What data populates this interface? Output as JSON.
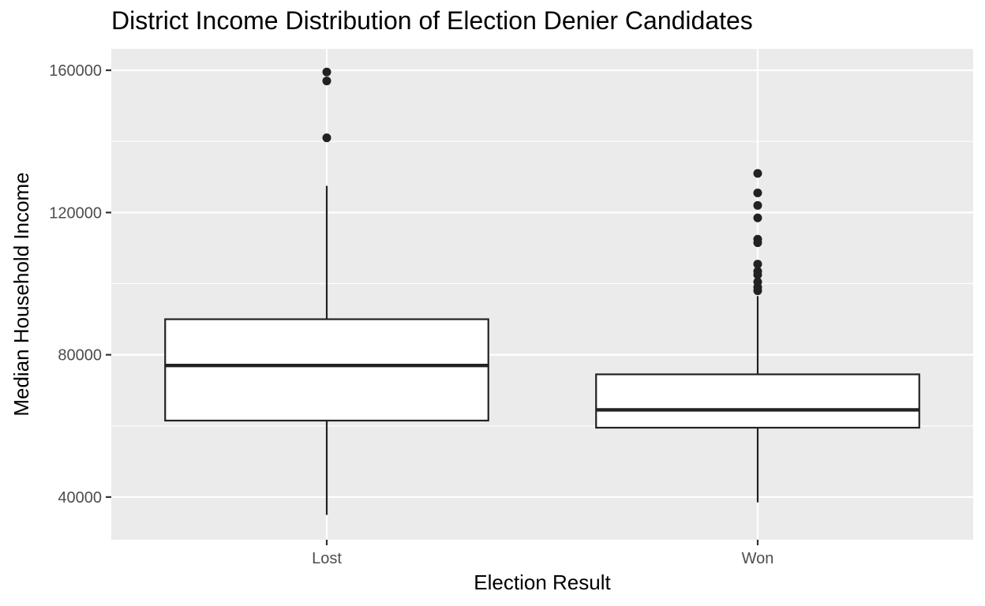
{
  "chart_data": {
    "type": "box",
    "title": "District Income Distribution of Election Denier Candidates",
    "xlabel": "Election Result",
    "ylabel": "Median Household Income",
    "categories": [
      "Lost",
      "Won"
    ],
    "y_ticks": [
      40000,
      80000,
      120000,
      160000
    ],
    "y_tick_labels": [
      "40000",
      "80000",
      "120000",
      "160000"
    ],
    "ylim": [
      28000,
      166000
    ],
    "grid": true,
    "boxes": [
      {
        "category": "Lost",
        "whisker_low": 35000,
        "q1": 61500,
        "median": 77000,
        "q3": 90000,
        "whisker_high": 127500,
        "outliers": [
          141000,
          157000,
          159500
        ]
      },
      {
        "category": "Won",
        "whisker_low": 38500,
        "q1": 59500,
        "median": 64500,
        "q3": 74500,
        "whisker_high": 96500,
        "outliers": [
          98000,
          99000,
          100500,
          102500,
          103500,
          105500,
          111500,
          112500,
          118500,
          122000,
          125500,
          131000
        ]
      }
    ],
    "colors": {
      "panel": "#ebebeb",
      "grid": "#ffffff",
      "box_fill": "#ffffff",
      "stroke": "#222222",
      "tick_text": "#4d4d4d"
    }
  }
}
